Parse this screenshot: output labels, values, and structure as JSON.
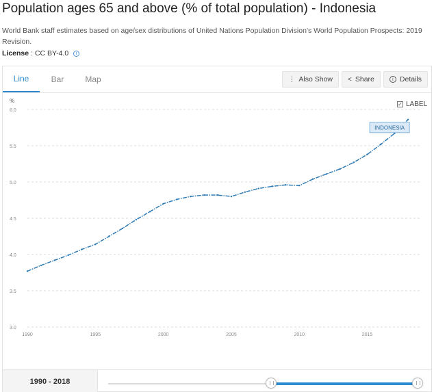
{
  "page": {
    "title": "Population ages 65 and above (% of total population) - Indonesia",
    "description": "World Bank staff estimates based on age/sex distributions of United Nations Population Division's World Population Prospects: 2019 Revision.",
    "license_label": "License",
    "license_value": ": CC BY-4.0"
  },
  "tabs": [
    {
      "label": "Line"
    },
    {
      "label": "Bar"
    },
    {
      "label": "Map"
    }
  ],
  "toolbar": {
    "also_show": "Also Show",
    "share": "Share",
    "details": "Details"
  },
  "label_toggle": {
    "label": "LABEL",
    "checked": true
  },
  "range": {
    "text": "1990 - 2018",
    "start": 1990,
    "end": 2018
  },
  "chart_data": {
    "type": "line",
    "title": "Population ages 65 and above (% of total population) - Indonesia",
    "ylabel": "%",
    "xlabel": "",
    "ylim": [
      3.0,
      6.0
    ],
    "xlim": [
      1990,
      2019
    ],
    "y_ticks": [
      3.0,
      3.5,
      4.0,
      4.5,
      5.0,
      5.5,
      6.0
    ],
    "y_tick_labels": [
      "3.0",
      "3.5",
      "4.0",
      "4.5",
      "5.0",
      "5.5",
      "6.0"
    ],
    "x_ticks": [
      1990,
      1995,
      2000,
      2005,
      2010,
      2015
    ],
    "x_tick_labels": [
      "1990",
      "1995",
      "2000",
      "2005",
      "2010",
      "2015"
    ],
    "series": [
      {
        "name": "INDONESIA",
        "color": "#2e7bb4",
        "x": [
          1990,
          1991,
          1992,
          1993,
          1994,
          1995,
          1996,
          1997,
          1998,
          1999,
          2000,
          2001,
          2002,
          2003,
          2004,
          2005,
          2006,
          2007,
          2008,
          2009,
          2010,
          2011,
          2012,
          2013,
          2014,
          2015,
          2016,
          2017,
          2018
        ],
        "values": [
          3.77,
          3.85,
          3.92,
          3.99,
          4.07,
          4.14,
          4.25,
          4.36,
          4.48,
          4.59,
          4.7,
          4.76,
          4.8,
          4.82,
          4.82,
          4.8,
          4.86,
          4.91,
          4.94,
          4.96,
          4.95,
          5.04,
          5.11,
          5.18,
          5.27,
          5.38,
          5.52,
          5.67,
          5.86
        ]
      }
    ],
    "series_label": "INDONESIA"
  }
}
